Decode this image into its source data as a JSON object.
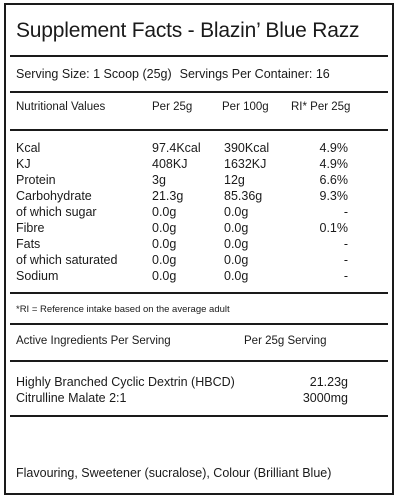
{
  "title": "Supplement Facts - Blazin’ Blue Razz",
  "serving": {
    "size": "Serving Size: 1 Scoop (25g)",
    "per_container": "Servings Per Container: 16"
  },
  "nutrition_header": {
    "label": "Nutritional Values",
    "per_25g": "Per 25g",
    "per_100g": "Per 100g",
    "ri": "RI* Per 25g"
  },
  "nutrition_rows": [
    {
      "name": "Kcal",
      "per_25g": "97.4Kcal",
      "per_100g": "390Kcal",
      "ri": "4.9%"
    },
    {
      "name": "KJ",
      "per_25g": "408KJ",
      "per_100g": "1632KJ",
      "ri": "4.9%"
    },
    {
      "name": "Protein",
      "per_25g": "3g",
      "per_100g": "12g",
      "ri": "6.6%"
    },
    {
      "name": "Carbohydrate",
      "per_25g": "21.3g",
      "per_100g": "85.36g",
      "ri": "9.3%"
    },
    {
      "name": "of which sugar",
      "per_25g": "0.0g",
      "per_100g": "0.0g",
      "ri": "-"
    },
    {
      "name": "Fibre",
      "per_25g": "0.0g",
      "per_100g": "0.0g",
      "ri": "0.1%"
    },
    {
      "name": "Fats",
      "per_25g": "0.0g",
      "per_100g": "0.0g",
      "ri": "-"
    },
    {
      "name": "of which saturated",
      "per_25g": "0.0g",
      "per_100g": "0.0g",
      "ri": "-"
    },
    {
      "name": "Sodium",
      "per_25g": "0.0g",
      "per_100g": "0.0g",
      "ri": "-"
    }
  ],
  "ri_note": "*RI = Reference intake based on the average adult",
  "active_header": {
    "label": "Active Ingredients Per Serving",
    "per_serving": "Per 25g Serving"
  },
  "active_rows": [
    {
      "name": "Highly Branched Cyclic Dextrin (HBCD)",
      "amount": "21.23g"
    },
    {
      "name": "Citrulline Malate 2:1",
      "amount": "3000mg"
    }
  ],
  "footer": "Flavouring, Sweetener (sucralose), Colour (Brilliant Blue)"
}
